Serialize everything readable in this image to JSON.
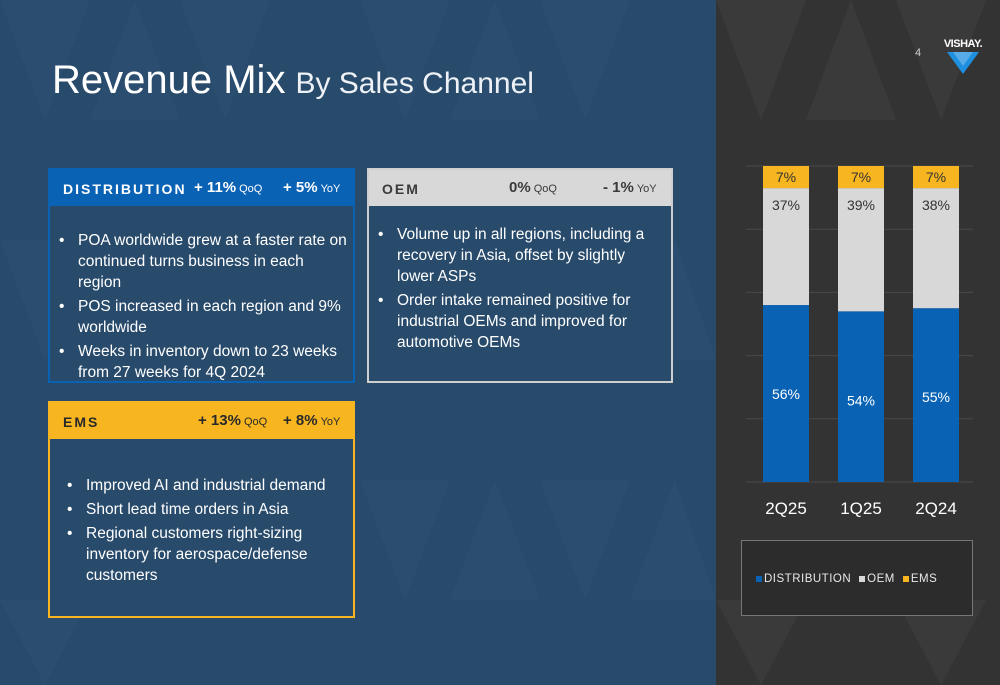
{
  "slide": {
    "title": "Revenue Mix",
    "subtitle": "By Sales Channel",
    "page_number": "4",
    "logo_text": "VISHAY."
  },
  "panels": {
    "distribution": {
      "name": "DISTRIBUTION",
      "color": "#0a62b5",
      "qoq_value": "+ 11%",
      "qoq_unit": "QoQ",
      "yoy_value": "+ 5%",
      "yoy_unit": "YoY",
      "bullets": [
        "POA worldwide grew at a faster rate on continued turns business in each region",
        "POS increased in each region and 9% worldwide",
        "Weeks in inventory down to 23 weeks from 27 weeks for 4Q 2024"
      ]
    },
    "oem": {
      "name": "OEM",
      "color": "#d8d8d8",
      "qoq_value": "0%",
      "qoq_unit": "QoQ",
      "yoy_value": "- 1%",
      "yoy_unit": "YoY",
      "bullets": [
        "Volume up in all regions, including a recovery in Asia, offset by slightly lower ASPs",
        "Order intake remained positive for industrial OEMs and improved for automotive OEMs"
      ]
    },
    "ems": {
      "name": "EMS",
      "color": "#f7b520",
      "qoq_value": "+ 13%",
      "qoq_unit": "QoQ",
      "yoy_value": "+ 8%",
      "yoy_unit": "YoY",
      "bullets": [
        "Improved AI and industrial demand",
        "Short lead time orders in Asia",
        "Regional customers right-sizing inventory for aerospace/defense customers"
      ]
    }
  },
  "chart_data": {
    "type": "bar",
    "stacked": true,
    "categories": [
      "2Q25",
      "1Q25",
      "2Q24"
    ],
    "series": [
      {
        "name": "DISTRIBUTION",
        "values": [
          56,
          54,
          55
        ],
        "color": "#0a62b5",
        "label_color": "#ffffff"
      },
      {
        "name": "OEM",
        "values": [
          37,
          39,
          38
        ],
        "color": "#d8d8d8",
        "label_color": "#333333"
      },
      {
        "name": "EMS",
        "values": [
          7,
          7,
          7
        ],
        "color": "#f7b520",
        "label_color": "#333333"
      }
    ],
    "value_suffix": "%",
    "ylim": [
      0,
      100
    ],
    "grid": true,
    "legend_position": "bottom"
  }
}
